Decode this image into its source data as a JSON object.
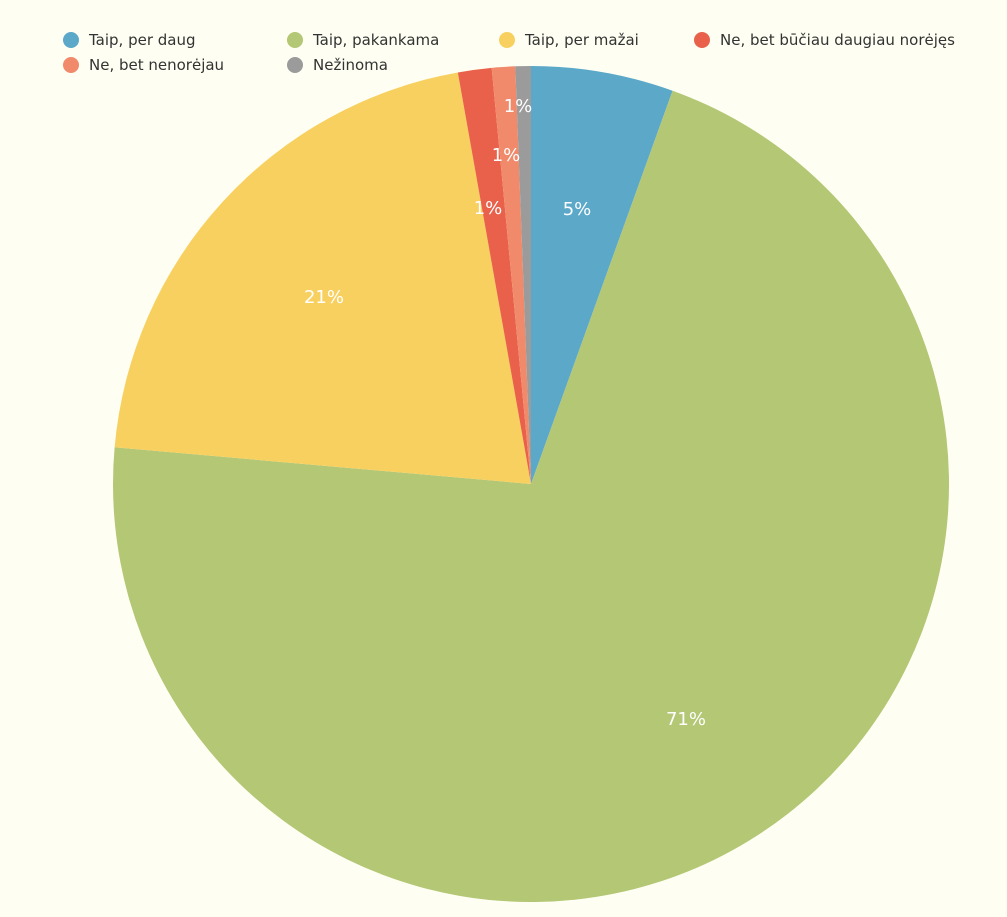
{
  "chart_data": {
    "type": "pie",
    "title": "",
    "legend_position": "top",
    "slices": [
      {
        "name": "Taip, per daug",
        "value": 5.5,
        "label": "5%",
        "color": "#5ba8c9"
      },
      {
        "name": "Taip, pakankama",
        "value": 70.9,
        "label": "71%",
        "color": "#b3c775"
      },
      {
        "name": "Taip, per mažai",
        "value": 20.8,
        "label": "21%",
        "color": "#f8d060"
      },
      {
        "name": "Ne, bet būčiau daugiau norėjęs",
        "value": 1.3,
        "label": "1%",
        "color": "#e9614b"
      },
      {
        "name": "Ne, bet nenorėjau",
        "value": 0.9,
        "label": "1%",
        "color": "#f18a6b"
      },
      {
        "name": "Nežinoma",
        "value": 0.6,
        "label": "1%",
        "color": "#9b9b9b"
      }
    ]
  }
}
